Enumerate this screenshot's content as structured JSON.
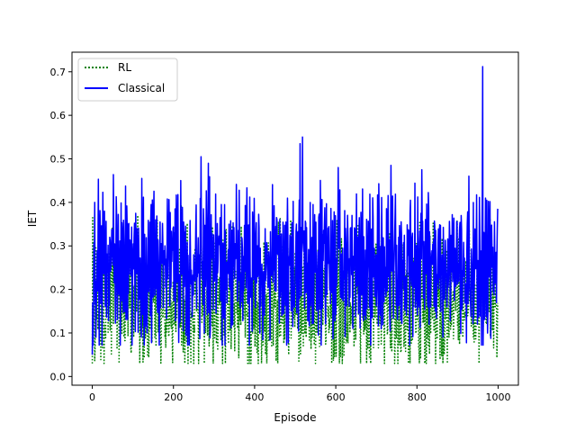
{
  "chart_data": {
    "type": "line",
    "title": "",
    "xlabel": "Episode",
    "ylabel": "IET",
    "xlim": [
      -50,
      1050
    ],
    "ylim": [
      -0.02,
      0.745
    ],
    "xticks": [
      0,
      200,
      400,
      600,
      800,
      1000
    ],
    "xtick_labels": [
      "0",
      "200",
      "400",
      "600",
      "800",
      "1000"
    ],
    "yticks": [
      0.0,
      0.1,
      0.2,
      0.3,
      0.4,
      0.5,
      0.6,
      0.7
    ],
    "ytick_labels": [
      "0.0",
      "0.1",
      "0.2",
      "0.3",
      "0.4",
      "0.5",
      "0.6",
      "0.7"
    ],
    "grid": false,
    "legend_position": "upper-left",
    "episodes": 1000,
    "series": [
      {
        "name": "RL",
        "color": "#008000",
        "style": "dotted",
        "start_value": 0.03,
        "typical_range": [
          0.05,
          0.3
        ],
        "peaks": [
          {
            "x": 0,
            "y": 0.03
          },
          {
            "x": 150,
            "y": 0.32
          },
          {
            "x": 430,
            "y": 0.03
          },
          {
            "x": 806,
            "y": 0.03
          }
        ]
      },
      {
        "name": "Classical",
        "color": "#0000ff",
        "style": "solid",
        "start_value": 0.05,
        "typical_range": [
          0.12,
          0.38
        ],
        "peaks": [
          {
            "x": 6,
            "y": 0.4
          },
          {
            "x": 122,
            "y": 0.455
          },
          {
            "x": 218,
            "y": 0.45
          },
          {
            "x": 268,
            "y": 0.505
          },
          {
            "x": 286,
            "y": 0.49
          },
          {
            "x": 512,
            "y": 0.535
          },
          {
            "x": 518,
            "y": 0.55
          },
          {
            "x": 606,
            "y": 0.48
          },
          {
            "x": 736,
            "y": 0.485
          },
          {
            "x": 812,
            "y": 0.475
          },
          {
            "x": 962,
            "y": 0.712
          },
          {
            "x": 972,
            "y": 0.405
          }
        ]
      }
    ]
  }
}
